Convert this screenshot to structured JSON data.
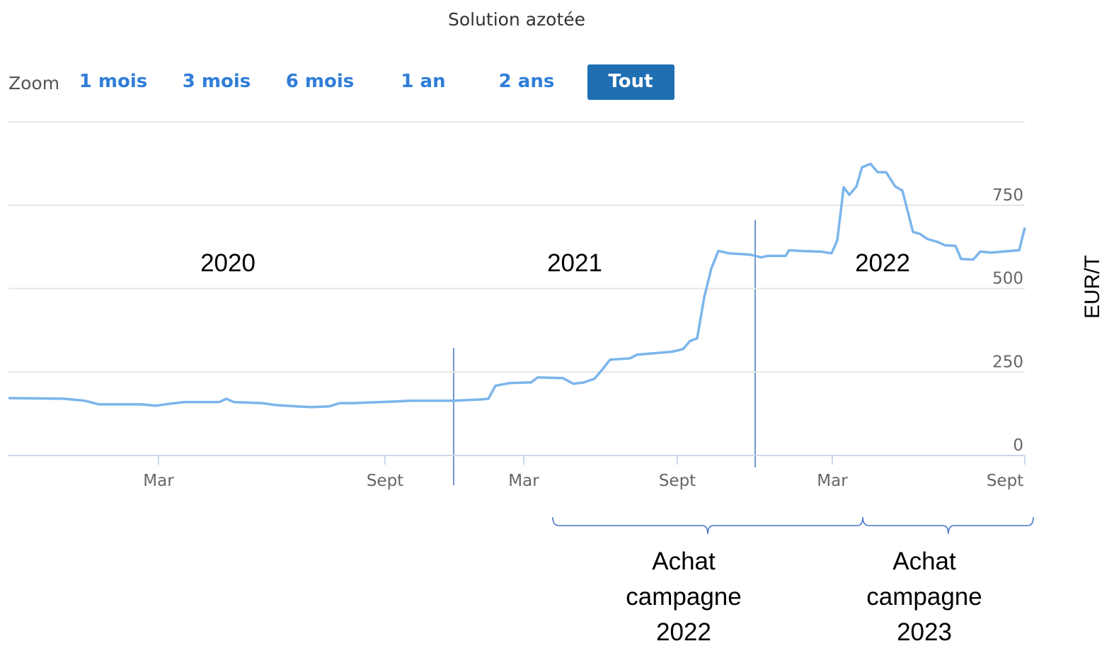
{
  "chart_data": {
    "type": "line",
    "title": "Solution azotée",
    "ylabel": "EUR/T",
    "zoom": {
      "label": "Zoom",
      "buttons": [
        "1 mois",
        "3 mois",
        "6 mois",
        "1 an",
        "2 ans",
        "Tout"
      ],
      "selected": 5
    },
    "color": "#7cb5ec",
    "grid": true,
    "xlim": [
      0,
      1436
    ],
    "ylim": [
      0,
      1000
    ],
    "yticks": [
      0,
      250,
      500,
      750
    ],
    "xticks": [
      {
        "value": 212,
        "label": "Mar"
      },
      {
        "value": 532,
        "label": "Sept"
      },
      {
        "value": 728,
        "label": "Mar"
      },
      {
        "value": 945,
        "label": "Sept"
      },
      {
        "value": 1164,
        "label": "Mar"
      },
      {
        "value": 1436,
        "label": "Sept"
      }
    ],
    "x": [
      0,
      78,
      108,
      128,
      188,
      208,
      228,
      248,
      298,
      308,
      318,
      358,
      378,
      408,
      428,
      453,
      468,
      488,
      548,
      568,
      628,
      668,
      678,
      688,
      708,
      738,
      748,
      783,
      798,
      813,
      828,
      838,
      850,
      878,
      888,
      938,
      953,
      963,
      973,
      983,
      993,
      1003,
      1018,
      1048,
      1063,
      1073,
      1098,
      1103,
      1118,
      1148,
      1163,
      1171,
      1180,
      1188,
      1198,
      1206,
      1218,
      1228,
      1240,
      1253,
      1263,
      1278,
      1288,
      1298,
      1313,
      1323,
      1338,
      1346,
      1363,
      1373,
      1388,
      1428,
      1436
    ],
    "values": [
      172,
      170,
      164,
      153,
      153,
      149,
      155,
      160,
      160,
      170,
      160,
      157,
      151,
      147,
      145,
      147,
      157,
      157,
      162,
      164,
      164,
      168,
      170,
      209,
      217,
      219,
      234,
      232,
      215,
      219,
      230,
      255,
      287,
      291,
      302,
      311,
      319,
      343,
      351,
      474,
      560,
      613,
      606,
      602,
      594,
      598,
      598,
      615,
      613,
      611,
      606,
      645,
      804,
      781,
      806,
      864,
      874,
      849,
      849,
      806,
      794,
      670,
      664,
      649,
      640,
      630,
      628,
      589,
      587,
      611,
      608,
      615,
      683
    ],
    "annotations": [
      "2020",
      "2021",
      "2022"
    ],
    "periods": [
      [
        "Achat",
        "campagne",
        "2022"
      ],
      [
        "Achat",
        "campagne",
        "2023"
      ]
    ]
  }
}
